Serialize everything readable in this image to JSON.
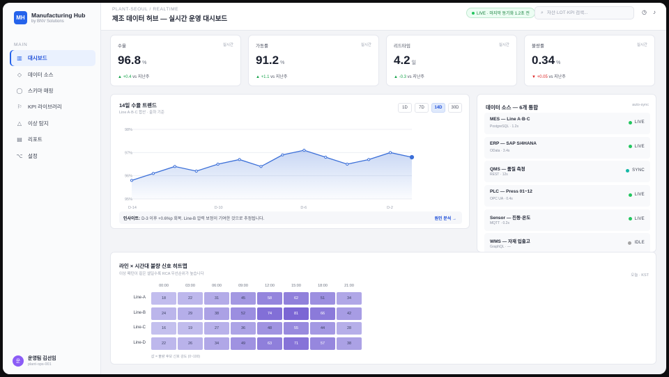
{
  "brand": {
    "logo": "MH",
    "name": "Manufacturing Hub",
    "sub": "by BNV Solutions"
  },
  "nav": {
    "section": "MAIN",
    "items": [
      {
        "label": "대시보드",
        "icon": "grid-icon",
        "glyph": "▥",
        "active": true
      },
      {
        "label": "데이터 소스",
        "icon": "diamond-icon",
        "glyph": "◇",
        "active": false
      },
      {
        "label": "스키마 매핑",
        "icon": "circle-icon",
        "glyph": "◯",
        "active": false
      },
      {
        "label": "KPI 라이브러리",
        "icon": "flag-icon",
        "glyph": "⚐",
        "active": false
      },
      {
        "label": "이상 탐지",
        "icon": "triangle-icon",
        "glyph": "△",
        "active": false
      },
      {
        "label": "리포트",
        "icon": "report-icon",
        "glyph": "▤",
        "active": false
      },
      {
        "label": "설정",
        "icon": "settings-icon",
        "glyph": "⌥",
        "active": false
      }
    ]
  },
  "user": {
    "initial": "운",
    "name": "운영팀 김선임",
    "role": "plant-ops-001"
  },
  "header": {
    "crumb": "PLANT-SEOUL / REALTIME",
    "title": "제조 데이터 허브 — 실시간 운영 대시보드",
    "live": "LIVE · 마지막 동기화 1.2초 전",
    "search_placeholder": "자산·LOT·KPI 검색..."
  },
  "kpis": [
    {
      "label": "수율",
      "tag": "실시간",
      "value": "96.8",
      "unit": "%",
      "arrow": "▲",
      "delta": "+0.4",
      "note": "vs 지난주",
      "trend": "up"
    },
    {
      "label": "가동률",
      "tag": "실시간",
      "value": "91.2",
      "unit": "%",
      "arrow": "▲",
      "delta": "+1.1",
      "note": "vs 지난주",
      "trend": "up"
    },
    {
      "label": "리드타임",
      "tag": "실시간",
      "value": "4.2",
      "unit": "일",
      "arrow": "▲",
      "delta": "-0.3",
      "note": "vs 지난주",
      "trend": "up"
    },
    {
      "label": "불량률",
      "tag": "실시간",
      "value": "0.34",
      "unit": "%",
      "arrow": "▼",
      "delta": "+0.05",
      "note": "vs 지난주",
      "trend": "down"
    }
  ],
  "trend": {
    "title": "14일 수율 트렌드",
    "subtitle": "Line A·B·C 합산 · 출하 기준",
    "ranges": [
      {
        "label": "1D",
        "active": false
      },
      {
        "label": "7D",
        "active": false
      },
      {
        "label": "14D",
        "active": true
      },
      {
        "label": "30D",
        "active": false
      }
    ],
    "insight_label": "인사이트:",
    "insight_text": "D-3 이후 +0.6%p 회복. Line-B 압력 보정이 기여한 것으로 추정됩니다.",
    "insight_link": "원인 분석 →"
  },
  "chart_data": {
    "type": "area",
    "title": "14일 수율 트렌드",
    "subtitle": "Line A·B·C 합산 · 출하 기준",
    "x": [
      "D-14",
      "D-13",
      "D-12",
      "D-11",
      "D-10",
      "D-9",
      "D-8",
      "D-7",
      "D-6",
      "D-5",
      "D-4",
      "D-3",
      "D-2",
      "D-1"
    ],
    "x_tick_labels": [
      "D-14",
      "D-10",
      "D-6",
      "D-2"
    ],
    "values": [
      95.8,
      96.1,
      96.4,
      96.2,
      96.5,
      96.7,
      96.4,
      96.9,
      97.1,
      96.8,
      96.5,
      96.7,
      97.0,
      96.8
    ],
    "ylim": [
      95,
      98
    ],
    "y_ticks": [
      "95%",
      "96%",
      "97%",
      "98%"
    ],
    "line_color": "#3b6fd8",
    "grid": true
  },
  "sources": {
    "title": "데이터 소스 — 6개 통합",
    "tag": "auto-sync",
    "items": [
      {
        "name": "MES — Line A·B·C",
        "meta": "PostgreSQL · 1.2s",
        "status": "LIVE",
        "color": "#22c55e"
      },
      {
        "name": "ERP — SAP S/4HANA",
        "meta": "OData · 3.4s",
        "status": "LIVE",
        "color": "#22c55e"
      },
      {
        "name": "QMS — 품질 측정",
        "meta": "REST · 12s",
        "status": "SYNC",
        "color": "#14b8a6"
      },
      {
        "name": "PLC — Press 01~12",
        "meta": "OPC UA · 0.4s",
        "status": "LIVE",
        "color": "#22c55e"
      },
      {
        "name": "Sensor — 진동·온도",
        "meta": "MQTT · 0.2s",
        "status": "LIVE",
        "color": "#22c55e"
      },
      {
        "name": "WMS — 자재 입출고",
        "meta": "GraphQL · —",
        "status": "IDLE",
        "color": "#a3a3a3"
      }
    ]
  },
  "heatmap": {
    "title": "라인 × 시간대 불량 신호 히트맵",
    "subtitle": "이상 패턴이 짙은 셀일수록 RCA 우선순위가 높습니다",
    "tag": "오늘 · KST",
    "columns": [
      "00:00",
      "03:00",
      "06:00",
      "09:00",
      "12:00",
      "15:00",
      "18:00",
      "21:00"
    ],
    "rows": [
      {
        "label": "Line-A",
        "values": [
          18,
          22,
          31,
          45,
          58,
          62,
          51,
          34
        ]
      },
      {
        "label": "Line-B",
        "values": [
          24,
          29,
          38,
          52,
          74,
          81,
          66,
          42
        ]
      },
      {
        "label": "Line-C",
        "values": [
          16,
          19,
          27,
          36,
          48,
          55,
          44,
          28
        ]
      },
      {
        "label": "Line-D",
        "values": [
          22,
          26,
          34,
          49,
          63,
          71,
          57,
          38
        ]
      }
    ],
    "legend": "값 = 불량 후보 신호 강도 (0~100)"
  }
}
